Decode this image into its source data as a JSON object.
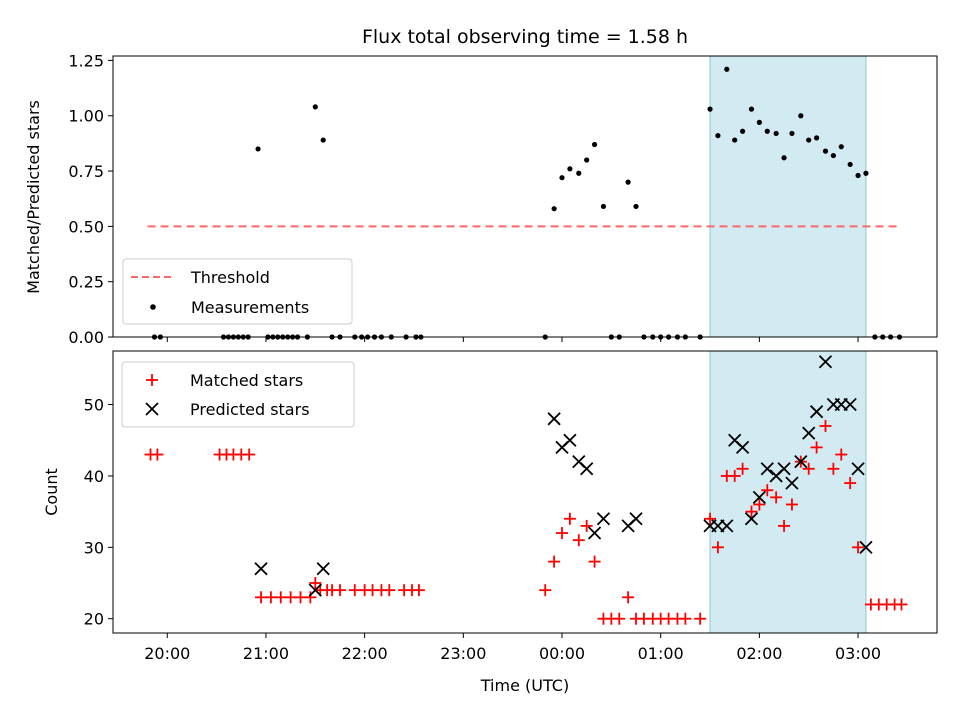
{
  "chart_data": {
    "title": "Flux total observing time = 1.58 h",
    "xlabel": "Time (UTC)",
    "x_unit": "hours since 00:00 UTC (negative = previous evening)",
    "x_ticks": [
      {
        "value": -4,
        "label": "20:00"
      },
      {
        "value": -3,
        "label": "21:00"
      },
      {
        "value": -2,
        "label": "22:00"
      },
      {
        "value": -1,
        "label": "23:00"
      },
      {
        "value": 0,
        "label": "00:00"
      },
      {
        "value": 1,
        "label": "01:00"
      },
      {
        "value": 2,
        "label": "02:00"
      },
      {
        "value": 3,
        "label": "03:00"
      }
    ],
    "xlim": [
      -4.55,
      3.8
    ],
    "shaded_span": {
      "x_start": 1.5,
      "x_end": 3.08,
      "color": "#add8e6"
    },
    "charts": [
      {
        "type": "scatter",
        "ylabel": "Matched/Predicted stars",
        "ylim": [
          0,
          1.27
        ],
        "y_ticks": [
          "0.00",
          "0.25",
          "0.50",
          "0.75",
          "1.00",
          "1.25"
        ],
        "legend_position": "lower-left",
        "threshold": {
          "name": "Threshold",
          "value": 0.5,
          "x_start": -4.2,
          "x_end": 3.4,
          "color": "#ff6666"
        },
        "series": [
          {
            "name": "Measurements",
            "color": "#000000",
            "points": [
              [
                -4.13,
                0
              ],
              [
                -4.07,
                0
              ],
              [
                -3.43,
                0
              ],
              [
                -3.38,
                0
              ],
              [
                -3.33,
                0
              ],
              [
                -3.28,
                0
              ],
              [
                -3.23,
                0
              ],
              [
                -3.18,
                0
              ],
              [
                -3.08,
                0.85
              ],
              [
                -2.98,
                0
              ],
              [
                -2.93,
                0
              ],
              [
                -2.88,
                0
              ],
              [
                -2.83,
                0
              ],
              [
                -2.78,
                0
              ],
              [
                -2.73,
                0
              ],
              [
                -2.68,
                0
              ],
              [
                -2.58,
                0
              ],
              [
                -2.5,
                1.04
              ],
              [
                -2.42,
                0.89
              ],
              [
                -2.33,
                0
              ],
              [
                -2.25,
                0
              ],
              [
                -2.1,
                0
              ],
              [
                -2.03,
                0
              ],
              [
                -1.97,
                0
              ],
              [
                -1.9,
                0
              ],
              [
                -1.83,
                0
              ],
              [
                -1.73,
                0
              ],
              [
                -1.58,
                0
              ],
              [
                -1.48,
                0
              ],
              [
                -1.43,
                0
              ],
              [
                -0.17,
                0
              ],
              [
                -0.08,
                0.58
              ],
              [
                0,
                0.72
              ],
              [
                0.08,
                0.76
              ],
              [
                0.17,
                0.74
              ],
              [
                0.25,
                0.8
              ],
              [
                0.33,
                0.87
              ],
              [
                0.42,
                0.59
              ],
              [
                0.5,
                0
              ],
              [
                0.58,
                0
              ],
              [
                0.67,
                0.7
              ],
              [
                0.75,
                0.59
              ],
              [
                0.83,
                0
              ],
              [
                0.92,
                0
              ],
              [
                1.0,
                0
              ],
              [
                1.08,
                0
              ],
              [
                1.17,
                0
              ],
              [
                1.25,
                0
              ],
              [
                1.4,
                0
              ],
              [
                1.5,
                1.03
              ],
              [
                1.58,
                0.91
              ],
              [
                1.67,
                1.21
              ],
              [
                1.75,
                0.89
              ],
              [
                1.83,
                0.93
              ],
              [
                1.92,
                1.03
              ],
              [
                2.0,
                0.97
              ],
              [
                2.08,
                0.93
              ],
              [
                2.17,
                0.92
              ],
              [
                2.25,
                0.81
              ],
              [
                2.33,
                0.92
              ],
              [
                2.42,
                1.0
              ],
              [
                2.5,
                0.89
              ],
              [
                2.58,
                0.9
              ],
              [
                2.67,
                0.84
              ],
              [
                2.75,
                0.82
              ],
              [
                2.83,
                0.86
              ],
              [
                2.92,
                0.78
              ],
              [
                3.0,
                0.73
              ],
              [
                3.08,
                0.74
              ],
              [
                3.17,
                0
              ],
              [
                3.25,
                0
              ],
              [
                3.33,
                0
              ],
              [
                3.42,
                0
              ]
            ]
          }
        ]
      },
      {
        "type": "scatter",
        "ylabel": "Count",
        "ylim": [
          18,
          57.5
        ],
        "y_ticks": [
          "20",
          "30",
          "40",
          "50"
        ],
        "legend_position": "upper-left",
        "series": [
          {
            "name": "Matched stars",
            "color": "#ff0000",
            "marker": "+",
            "points": [
              [
                -4.17,
                43
              ],
              [
                -4.1,
                43
              ],
              [
                -3.47,
                43
              ],
              [
                -3.4,
                43
              ],
              [
                -3.33,
                43
              ],
              [
                -3.25,
                43
              ],
              [
                -3.17,
                43
              ],
              [
                -3.05,
                23
              ],
              [
                -2.95,
                23
              ],
              [
                -2.85,
                23
              ],
              [
                -2.75,
                23
              ],
              [
                -2.65,
                23
              ],
              [
                -2.55,
                23
              ],
              [
                -2.5,
                25
              ],
              [
                -2.45,
                24
              ],
              [
                -2.38,
                24
              ],
              [
                -2.33,
                24
              ],
              [
                -2.25,
                24
              ],
              [
                -2.1,
                24
              ],
              [
                -2.0,
                24
              ],
              [
                -1.92,
                24
              ],
              [
                -1.83,
                24
              ],
              [
                -1.75,
                24
              ],
              [
                -1.6,
                24
              ],
              [
                -1.52,
                24
              ],
              [
                -1.45,
                24
              ],
              [
                -0.17,
                24
              ],
              [
                -0.08,
                28
              ],
              [
                0,
                32
              ],
              [
                0.08,
                34
              ],
              [
                0.17,
                31
              ],
              [
                0.25,
                33
              ],
              [
                0.33,
                28
              ],
              [
                0.42,
                20
              ],
              [
                0.5,
                20
              ],
              [
                0.58,
                20
              ],
              [
                0.67,
                23
              ],
              [
                0.75,
                20
              ],
              [
                0.83,
                20
              ],
              [
                0.92,
                20
              ],
              [
                1.0,
                20
              ],
              [
                1.08,
                20
              ],
              [
                1.17,
                20
              ],
              [
                1.25,
                20
              ],
              [
                1.4,
                20
              ],
              [
                1.5,
                34
              ],
              [
                1.58,
                30
              ],
              [
                1.67,
                40
              ],
              [
                1.75,
                40
              ],
              [
                1.83,
                41
              ],
              [
                1.92,
                35
              ],
              [
                2.0,
                36
              ],
              [
                2.08,
                38
              ],
              [
                2.17,
                37
              ],
              [
                2.25,
                33
              ],
              [
                2.33,
                36
              ],
              [
                2.42,
                42
              ],
              [
                2.5,
                41
              ],
              [
                2.58,
                44
              ],
              [
                2.67,
                47
              ],
              [
                2.75,
                41
              ],
              [
                2.83,
                43
              ],
              [
                2.92,
                39
              ],
              [
                3.0,
                30
              ],
              [
                3.13,
                22
              ],
              [
                3.21,
                22
              ],
              [
                3.29,
                22
              ],
              [
                3.37,
                22
              ],
              [
                3.44,
                22
              ]
            ]
          },
          {
            "name": "Predicted stars",
            "color": "#000000",
            "marker": "x",
            "points": [
              [
                -3.05,
                27
              ],
              [
                -2.5,
                24
              ],
              [
                -2.42,
                27
              ],
              [
                -0.08,
                48
              ],
              [
                0,
                44
              ],
              [
                0.08,
                45
              ],
              [
                0.17,
                42
              ],
              [
                0.25,
                41
              ],
              [
                0.33,
                32
              ],
              [
                0.42,
                34
              ],
              [
                0.67,
                33
              ],
              [
                0.75,
                34
              ],
              [
                1.5,
                33
              ],
              [
                1.58,
                33
              ],
              [
                1.67,
                33
              ],
              [
                1.75,
                45
              ],
              [
                1.83,
                44
              ],
              [
                1.92,
                34
              ],
              [
                2.0,
                37
              ],
              [
                2.08,
                41
              ],
              [
                2.17,
                40
              ],
              [
                2.25,
                41
              ],
              [
                2.33,
                39
              ],
              [
                2.42,
                42
              ],
              [
                2.5,
                46
              ],
              [
                2.58,
                49
              ],
              [
                2.67,
                56
              ],
              [
                2.75,
                50
              ],
              [
                2.83,
                50
              ],
              [
                2.92,
                50
              ],
              [
                3.0,
                41
              ],
              [
                3.08,
                30
              ]
            ]
          }
        ]
      }
    ]
  }
}
